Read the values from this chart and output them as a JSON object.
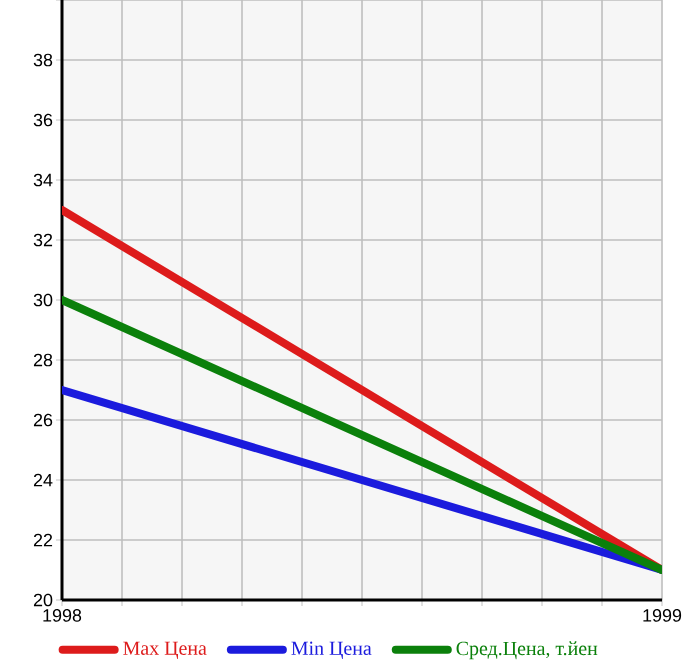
{
  "chart_data": {
    "type": "line",
    "x": [
      1998,
      1999
    ],
    "series": [
      {
        "name": "Max Цена",
        "color": "#dd1b1b",
        "values": [
          33,
          21
        ]
      },
      {
        "name": "Min Цена",
        "color": "#1b1bdd",
        "values": [
          27,
          21
        ]
      },
      {
        "name": "Сред.Цена, т.йен",
        "color": "#0b800b",
        "values": [
          30,
          21
        ]
      }
    ],
    "xlim": [
      1998,
      1999
    ],
    "xticks": [
      1998,
      {
        "value": 1998.1,
        "label": null
      },
      {
        "value": 1998.2,
        "label": null
      },
      {
        "value": 1998.3,
        "label": null
      },
      {
        "value": 1998.4,
        "label": null
      },
      {
        "value": 1998.5,
        "label": null
      },
      {
        "value": 1998.6,
        "label": null
      },
      {
        "value": 1998.7,
        "label": null
      },
      {
        "value": 1998.8,
        "label": null
      },
      {
        "value": 1998.9,
        "label": null
      },
      1999
    ],
    "ylim": [
      20,
      40
    ],
    "yticks": [
      20,
      22,
      24,
      26,
      28,
      30,
      32,
      34,
      36,
      38,
      {
        "value": 40,
        "label": null
      }
    ],
    "grid": true,
    "legend": "bottom",
    "marker": "none",
    "line_style": "solid"
  }
}
